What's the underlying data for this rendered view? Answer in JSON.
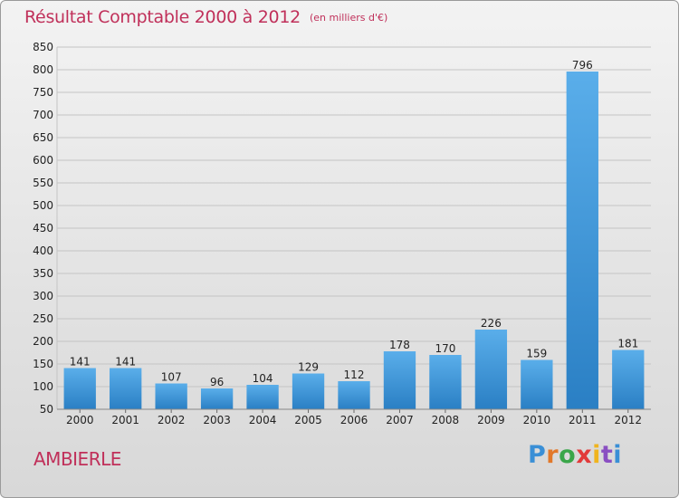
{
  "header": {
    "title": "Résultat Comptable 2000 à 2012",
    "unit": "(en milliers d'€)"
  },
  "footer": {
    "town": "AMBIERLE",
    "logo": "Proxiti",
    "logo_colors": [
      "#3a8fd6",
      "#e2782a",
      "#3aa64a",
      "#e23a3a",
      "#f0b41e",
      "#8a4fc2",
      "#3a8fd6"
    ]
  },
  "colors": {
    "accent": "#c0305a",
    "bar_top": "#5aaeea",
    "bar_bottom": "#2a7fc4"
  },
  "chart_data": {
    "type": "bar",
    "title": "Résultat Comptable 2000 à 2012",
    "xlabel": "",
    "ylabel": "",
    "categories": [
      "2000",
      "2001",
      "2002",
      "2003",
      "2004",
      "2005",
      "2006",
      "2007",
      "2008",
      "2009",
      "2010",
      "2011",
      "2012"
    ],
    "values": [
      141,
      141,
      107,
      96,
      104,
      129,
      112,
      178,
      170,
      226,
      159,
      796,
      181
    ],
    "ylim": [
      50,
      850
    ],
    "yticks": [
      50,
      100,
      150,
      200,
      250,
      300,
      350,
      400,
      450,
      500,
      550,
      600,
      650,
      700,
      750,
      800,
      850
    ],
    "grid": true,
    "legend": "none"
  }
}
